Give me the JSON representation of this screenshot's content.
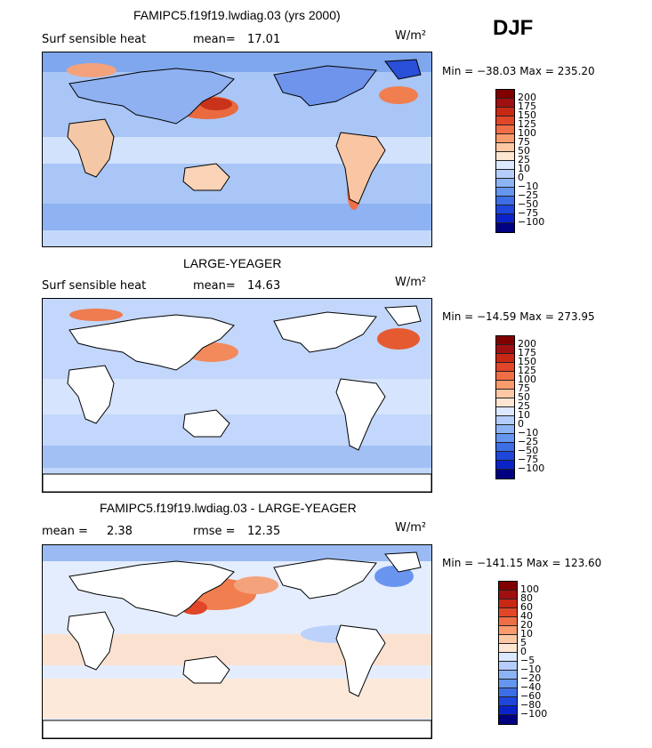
{
  "season": "DJF",
  "units": "W/m²",
  "colors": {
    "scale": [
      "#000080",
      "#0a23c8",
      "#1e46dc",
      "#3c6ee6",
      "#6496f0",
      "#8cb4f5",
      "#b4cdfa",
      "#dce8ff",
      "#ffe6d2",
      "#ffc8a5",
      "#fa9b6e",
      "#f06e46",
      "#e14628",
      "#c82814",
      "#a01010",
      "#800000"
    ],
    "land": "#ffffff",
    "coast": "#000000"
  },
  "chart_data": [
    {
      "type": "heatmap",
      "title": "FAMIPC5.f19f19.lwdiag.03 (yrs 2000)",
      "variable": "Surf sensible heat",
      "mean_label": "mean=",
      "mean": "17.01",
      "units": "W/m²",
      "min_max": "Min = −38.03  Max = 235.20",
      "min": -38.03,
      "max": 235.2,
      "colorbar_ticks": [
        "200",
        "175",
        "150",
        "125",
        "100",
        "75",
        "50",
        "25",
        "10",
        "0",
        "−10",
        "−25",
        "−50",
        "−75",
        "−100"
      ],
      "land_masked": false
    },
    {
      "type": "heatmap",
      "title": "LARGE-YEAGER",
      "variable": "Surf sensible heat",
      "mean_label": "mean=",
      "mean": "14.63",
      "units": "W/m²",
      "min_max": "Min = −14.59  Max = 273.95",
      "min": -14.59,
      "max": 273.95,
      "colorbar_ticks": [
        "200",
        "175",
        "150",
        "125",
        "100",
        "75",
        "50",
        "25",
        "10",
        "0",
        "−10",
        "−25",
        "−50",
        "−75",
        "−100"
      ],
      "land_masked": true
    },
    {
      "type": "heatmap",
      "title": "FAMIPC5.f19f19.lwdiag.03 - LARGE-YEAGER",
      "mean_label": "mean =",
      "mean": "2.38",
      "rmse_label": "rmse =",
      "rmse": "12.35",
      "units": "W/m²",
      "min_max": "Min = −141.15  Max = 123.60",
      "min": -141.15,
      "max": 123.6,
      "colorbar_ticks": [
        "100",
        "80",
        "60",
        "40",
        "20",
        "10",
        "5",
        "0",
        "−5",
        "−10",
        "−20",
        "−40",
        "−60",
        "−80",
        "−100"
      ],
      "land_masked": true
    }
  ]
}
